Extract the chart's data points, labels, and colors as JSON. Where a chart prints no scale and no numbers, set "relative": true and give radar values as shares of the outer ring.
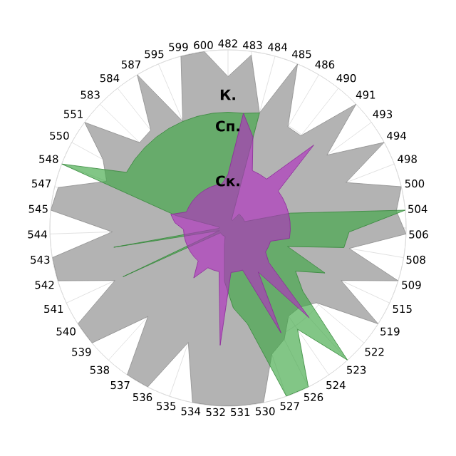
{
  "chart_data": {
    "type": "radar",
    "relative": true,
    "grid": true,
    "categories": [
      "482",
      "483",
      "484",
      "485",
      "486",
      "490",
      "491",
      "493",
      "494",
      "498",
      "500",
      "504",
      "506",
      "508",
      "509",
      "515",
      "519",
      "522",
      "523",
      "524",
      "526",
      "527",
      "530",
      "531",
      "532",
      "534",
      "535",
      "536",
      "537",
      "538",
      "539",
      "540",
      "541",
      "542",
      "543",
      "544",
      "545",
      "547",
      "548",
      "550",
      "551",
      "583",
      "584",
      "587",
      "595",
      "599",
      "600"
    ],
    "series": [
      {
        "name": "К.",
        "color": "#b3b3b3",
        "values": [
          0.85,
          0.98,
          0.67,
          1.0,
          0.66,
          0.66,
          1.0,
          0.69,
          1.0,
          0.71,
          1.0,
          0.95,
          1.0,
          0.69,
          1.0,
          0.7,
          1.0,
          0.65,
          0.6,
          0.6,
          0.7,
          0.75,
          1.0,
          1.0,
          1.0,
          1.0,
          0.68,
          1.0,
          1.0,
          0.67,
          1.0,
          1.0,
          0.7,
          1.0,
          1.0,
          0.65,
          1.0,
          0.98,
          0.73,
          0.8,
          1.0,
          0.69,
          0.7,
          1.0,
          0.65,
          1.0,
          1.0
        ]
      },
      {
        "name": "Сп.",
        "color": "#3fa845",
        "values": [
          0.65,
          0.65,
          0.67,
          0.05,
          0.05,
          0.1,
          0.1,
          0.1,
          0.1,
          0.1,
          0.36,
          1.0,
          0.68,
          0.66,
          0.35,
          0.6,
          0.45,
          0.55,
          1.0,
          0.69,
          1.0,
          1.0,
          0.55,
          0.45,
          0.3,
          0.1,
          0.05,
          0.05,
          0.05,
          0.05,
          0.05,
          0.05,
          0.65,
          0.05,
          0.65,
          0.05,
          0.05,
          0.3,
          1.0,
          0.65,
          0.65,
          0.65,
          0.65,
          0.65,
          0.65,
          0.65,
          0.65
        ]
      },
      {
        "name": "Ск.",
        "color": "#b030c0",
        "values": [
          0.3,
          0.65,
          0.53,
          0.35,
          0.35,
          0.35,
          0.67,
          0.35,
          0.35,
          0.35,
          0.35,
          0.35,
          0.35,
          0.35,
          0.25,
          0.25,
          0.25,
          0.3,
          0.68,
          0.3,
          0.66,
          0.25,
          0.25,
          0.25,
          0.66,
          0.25,
          0.25,
          0.25,
          0.34,
          0.25,
          0.25,
          0.25,
          0.25,
          0.25,
          0.25,
          0.25,
          0.3,
          0.33,
          0.25,
          0.25,
          0.25,
          0.25,
          0.25,
          0.25,
          0.25,
          0.25,
          0.25
        ]
      }
    ]
  }
}
